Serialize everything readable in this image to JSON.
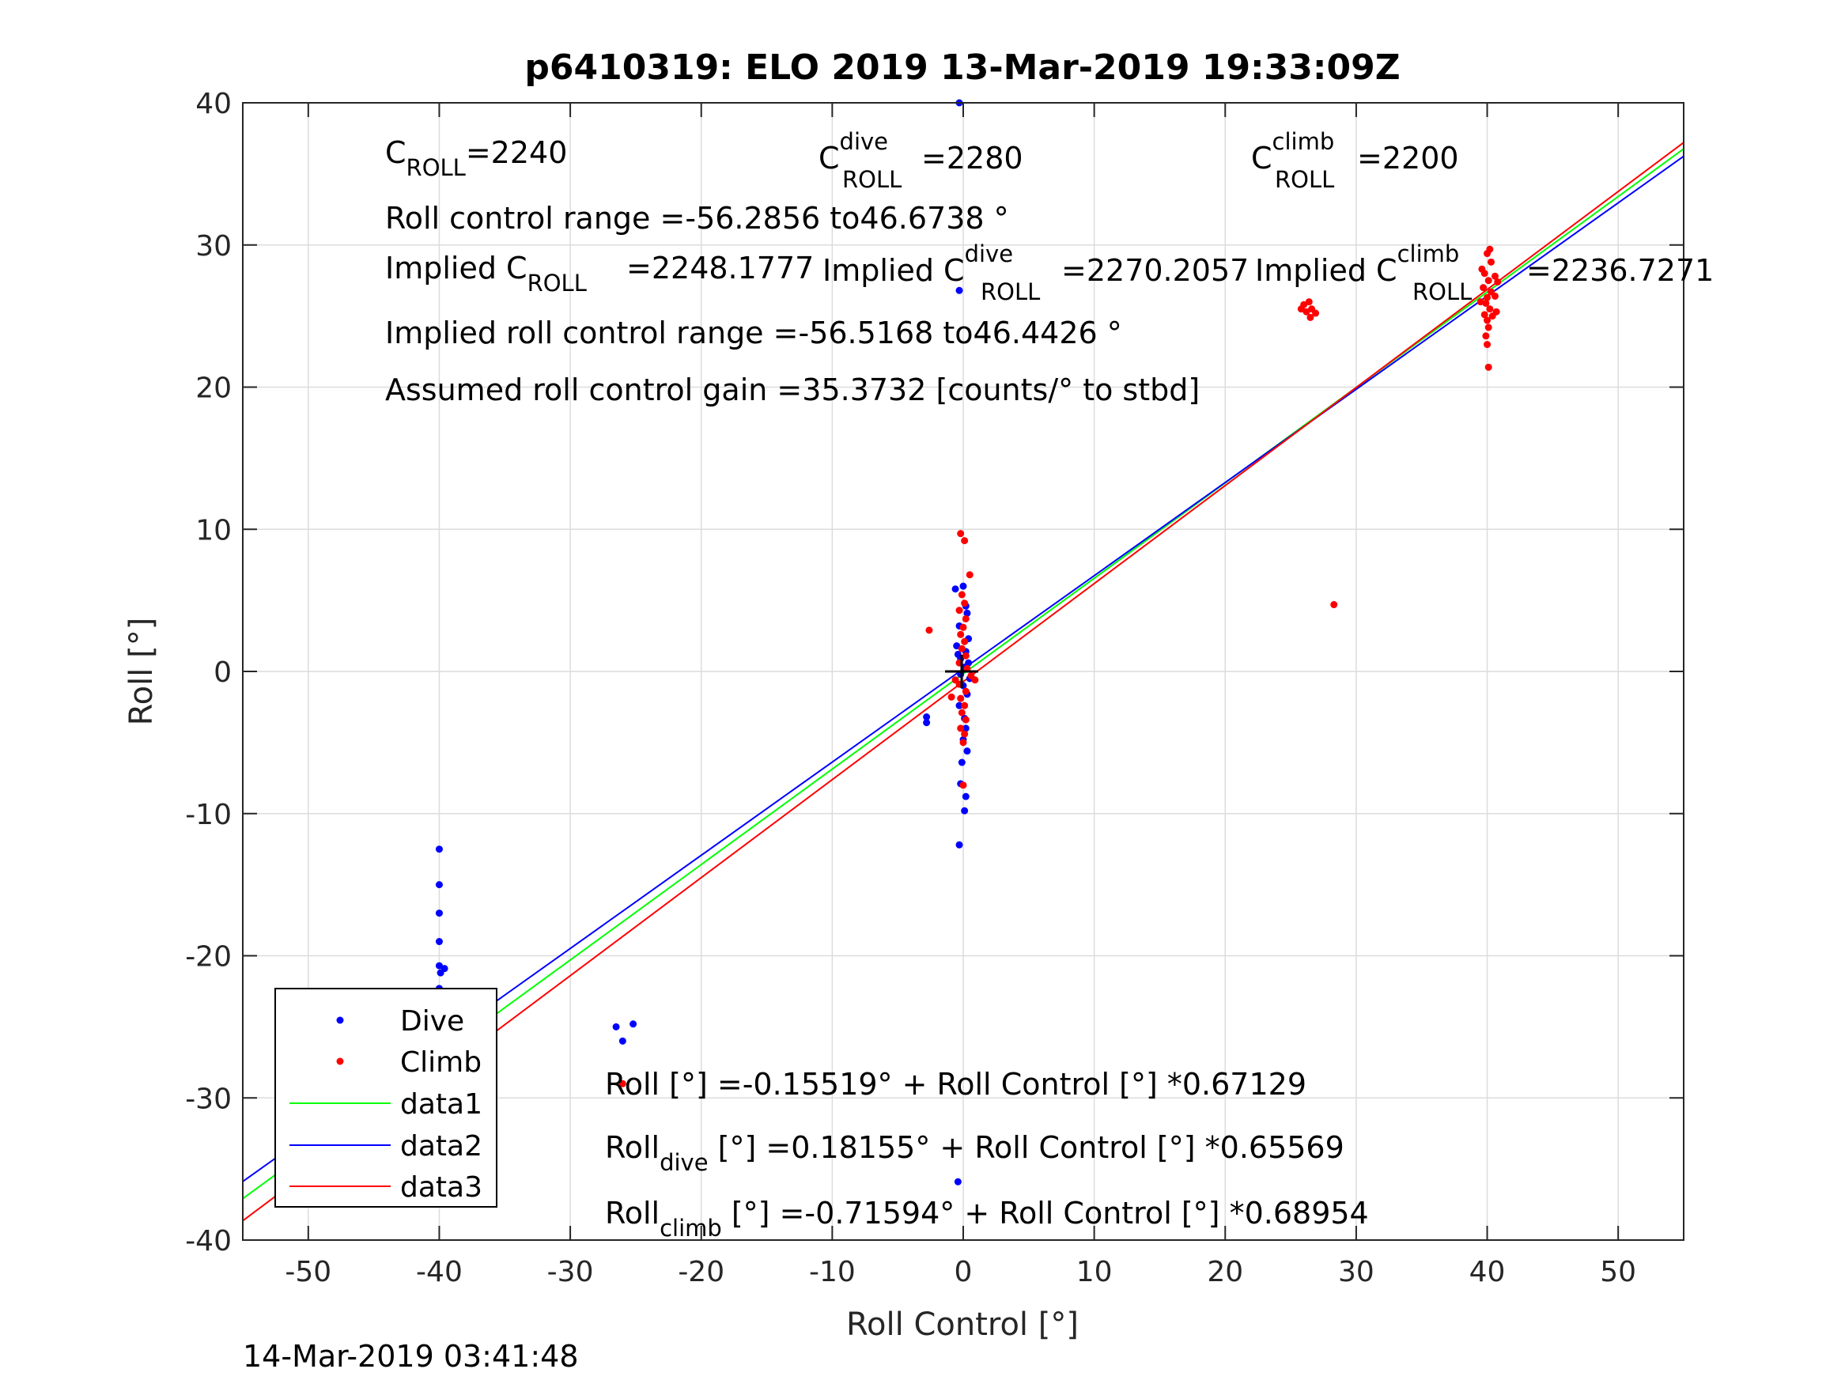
{
  "figure": {
    "title": "p6410319: ELO 2019 13-Mar-2019 19:33:09Z",
    "timestamp": "14-Mar-2019 03:41:48"
  },
  "annotations": {
    "c_roll": {
      "base": "C",
      "sub": "ROLL",
      "value": "=2240"
    },
    "c_roll_dive": {
      "base": "C",
      "sup": "dive",
      "sub": "ROLL",
      "value": "=2280"
    },
    "c_roll_climb": {
      "base": "C",
      "sup": "climb",
      "sub": "ROLL",
      "value": "=2200"
    },
    "roll_range": "Roll control range =-56.2856 to46.6738 °",
    "implied_c_roll": {
      "prefix": "Implied C",
      "sub": "ROLL",
      "value": "=2248.1777"
    },
    "implied_c_roll_dive": {
      "prefix": "Implied C",
      "sup": "dive",
      "sub": "ROLL",
      "value": "=2270.2057"
    },
    "implied_c_roll_climb": {
      "prefix": "Implied C",
      "sup": "climb",
      "sub": "ROLL",
      "value": "=2236.7271"
    },
    "implied_range": "Implied roll control range =-56.5168 to46.4426 °",
    "gain": "Assumed roll control gain =35.3732 [counts/° to stbd]",
    "eq_all": "Roll [°] =-0.15519° + Roll Control [°] *0.67129",
    "eq_dive": {
      "base": "Roll",
      "sub": "dive",
      "rest": " [°] =0.18155° + Roll Control [°] *0.65569"
    },
    "eq_climb": {
      "base": "Roll",
      "sub": "climb",
      "rest": " [°] =-0.71594° + Roll Control [°] *0.68954"
    }
  },
  "colors": {
    "dive": "#0000ff",
    "climb": "#ff0000",
    "data1": "#00ff00",
    "data2": "#0000ff",
    "data3": "#ff0000",
    "grid": "#dcdcdc",
    "axis": "#262626"
  },
  "chart_data": {
    "type": "scatter",
    "title": "p6410319: ELO 2019 13-Mar-2019 19:33:09Z",
    "xlabel": "Roll Control [°]",
    "ylabel": "Roll [°]",
    "xlim": [
      -55,
      55
    ],
    "ylim": [
      -40,
      40
    ],
    "xticks": [
      -50,
      -40,
      -30,
      -20,
      -10,
      0,
      10,
      20,
      30,
      40,
      50
    ],
    "yticks": [
      -40,
      -30,
      -20,
      -10,
      0,
      10,
      20,
      30,
      40
    ],
    "grid": true,
    "legend_position": "bottom-left",
    "legend": [
      "Dive",
      "Climb",
      "data1",
      "data2",
      "data3"
    ],
    "series": [
      {
        "name": "Dive",
        "kind": "points",
        "points": [
          [
            -40,
            -12.5
          ],
          [
            -40,
            -15
          ],
          [
            -40,
            -17
          ],
          [
            -40,
            -19
          ],
          [
            -40,
            -20.7
          ],
          [
            -39.6,
            -20.9
          ],
          [
            -39.9,
            -21.2
          ],
          [
            -40,
            -22.3
          ],
          [
            -40,
            -22.8
          ],
          [
            -40,
            -23.3
          ],
          [
            -40,
            -23.9
          ],
          [
            -40,
            -24.4
          ],
          [
            -40,
            -25.3
          ],
          [
            -40,
            -26.1
          ],
          [
            -39.8,
            -26.4
          ],
          [
            -40,
            -27.0
          ],
          [
            -40,
            -27.6
          ],
          [
            -40,
            -28.0
          ],
          [
            -40,
            -28.6
          ],
          [
            -40,
            -29.6
          ],
          [
            -40,
            -30.3
          ],
          [
            -40,
            -31.4
          ],
          [
            -39.6,
            -26.2
          ],
          [
            -40.2,
            -27.8
          ],
          [
            -40.2,
            -30.8
          ],
          [
            -26.5,
            -25
          ],
          [
            -26,
            -26
          ],
          [
            -25.2,
            -24.8
          ],
          [
            -2.8,
            -3.2
          ],
          [
            -2.8,
            -3.6
          ],
          [
            -0.3,
            40
          ],
          [
            -0.3,
            26.8
          ],
          [
            -0.6,
            5.8
          ],
          [
            0,
            6.0
          ],
          [
            0.2,
            4.6
          ],
          [
            0.3,
            4.1
          ],
          [
            -0.3,
            3.2
          ],
          [
            0.4,
            2.3
          ],
          [
            -0.5,
            1.8
          ],
          [
            0.2,
            1.4
          ],
          [
            -0.4,
            1.2
          ],
          [
            -0.2,
            0.9
          ],
          [
            0.4,
            0.6
          ],
          [
            0.1,
            0.3
          ],
          [
            -0.2,
            -0.2
          ],
          [
            0.5,
            -0.5
          ],
          [
            0,
            -1.0
          ],
          [
            0.3,
            -1.6
          ],
          [
            -0.3,
            -2.4
          ],
          [
            0.1,
            -3.3
          ],
          [
            0.2,
            -4.0
          ],
          [
            0,
            -4.8
          ],
          [
            0.3,
            -5.6
          ],
          [
            -0.1,
            -6.4
          ],
          [
            -0.2,
            -7.9
          ],
          [
            0.2,
            -8.8
          ],
          [
            0.1,
            -9.8
          ],
          [
            -0.3,
            -12.2
          ],
          [
            -0.4,
            -35.9
          ]
        ]
      },
      {
        "name": "Climb",
        "kind": "points",
        "points": [
          [
            -40,
            -25.1
          ],
          [
            -39.7,
            -25.6
          ],
          [
            -40.2,
            -26.5
          ],
          [
            -39.8,
            -27.1
          ],
          [
            -40,
            -27.7
          ],
          [
            -40.3,
            -28.3
          ],
          [
            -39.8,
            -28.9
          ],
          [
            -40,
            -29.3
          ],
          [
            -40.1,
            -29.8
          ],
          [
            -39.9,
            -30.3
          ],
          [
            -40,
            -30.9
          ],
          [
            -40,
            -31.2
          ],
          [
            -39.5,
            -27.4
          ],
          [
            -26,
            -29
          ],
          [
            -2.6,
            2.9
          ],
          [
            -0.2,
            9.7
          ],
          [
            0.1,
            9.2
          ],
          [
            0.5,
            6.8
          ],
          [
            -0.1,
            5.4
          ],
          [
            0.1,
            4.8
          ],
          [
            -0.3,
            4.3
          ],
          [
            0.2,
            3.7
          ],
          [
            0,
            3.1
          ],
          [
            -0.2,
            2.6
          ],
          [
            0.1,
            2.1
          ],
          [
            -0.1,
            1.6
          ],
          [
            0.2,
            1.1
          ],
          [
            -0.3,
            0.6
          ],
          [
            0.3,
            0.2
          ],
          [
            0.6,
            -0.3
          ],
          [
            0.9,
            -0.6
          ],
          [
            -0.3,
            -0.9
          ],
          [
            0.2,
            -1.4
          ],
          [
            -0.2,
            -1.9
          ],
          [
            0.1,
            -2.4
          ],
          [
            -0.1,
            -2.9
          ],
          [
            0.2,
            -3.4
          ],
          [
            -0.2,
            -4.0
          ],
          [
            0.1,
            -4.4
          ],
          [
            0,
            -5.0
          ],
          [
            0,
            -8.0
          ],
          [
            -0.6,
            -0.6
          ],
          [
            -0.9,
            -1.8
          ],
          [
            26,
            25.8
          ],
          [
            26.2,
            25.3
          ],
          [
            26.6,
            25.5
          ],
          [
            26.4,
            26
          ],
          [
            26.9,
            25.2
          ],
          [
            25.8,
            25.5
          ],
          [
            26.5,
            24.9
          ],
          [
            28.3,
            4.7
          ],
          [
            39.6,
            28.3
          ],
          [
            40,
            29.4
          ],
          [
            40.2,
            29.7
          ],
          [
            40.3,
            28.8
          ],
          [
            39.8,
            28.0
          ],
          [
            40.1,
            27.5
          ],
          [
            39.7,
            27.0
          ],
          [
            40.3,
            26.7
          ],
          [
            40,
            26.3
          ],
          [
            39.9,
            25.9
          ],
          [
            40.2,
            25.5
          ],
          [
            39.8,
            25.1
          ],
          [
            40,
            24.7
          ],
          [
            40.1,
            24.2
          ],
          [
            39.9,
            23.6
          ],
          [
            40,
            23.0
          ],
          [
            40.1,
            21.4
          ],
          [
            40.6,
            27.8
          ],
          [
            40.6,
            26.4
          ],
          [
            40.7,
            25.3
          ],
          [
            39.5,
            26.0
          ],
          [
            40.4,
            25.0
          ],
          [
            40.8,
            27.4
          ]
        ]
      },
      {
        "name": "data1",
        "kind": "line",
        "points": [
          [
            -55,
            -37.08
          ],
          [
            55,
            36.76
          ]
        ]
      },
      {
        "name": "data2",
        "kind": "line",
        "points": [
          [
            -55,
            -35.88
          ],
          [
            55,
            36.24
          ]
        ]
      },
      {
        "name": "data3",
        "kind": "line",
        "points": [
          [
            -55,
            -38.64
          ],
          [
            55,
            37.21
          ]
        ]
      }
    ]
  }
}
